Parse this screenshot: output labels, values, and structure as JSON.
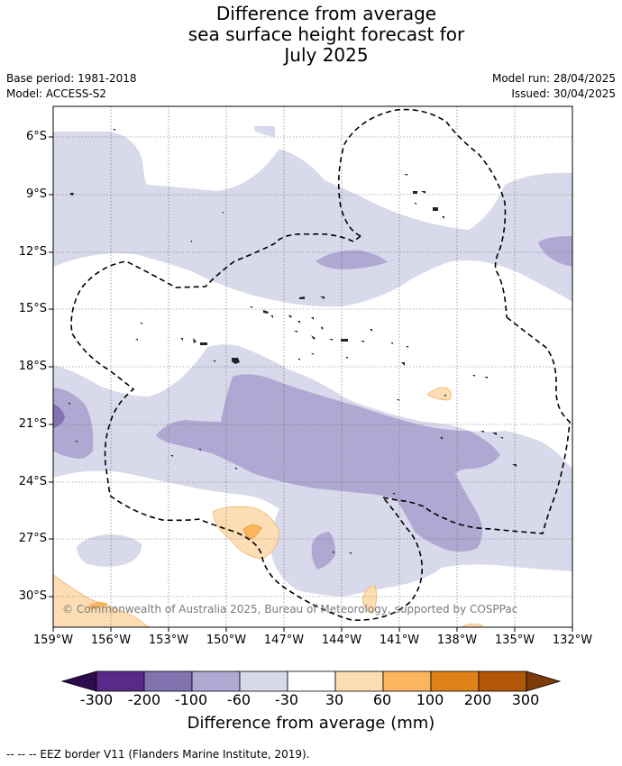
{
  "title_lines": [
    "Difference from average",
    "sea surface height forecast for",
    "July 2025"
  ],
  "meta_left": [
    "Base period: 1981-2018",
    "Model: ACCESS-S2"
  ],
  "meta_right": [
    "Model run: 28/04/2025",
    "Issued: 30/04/2025"
  ],
  "lat_ticks": [
    "6°S",
    "9°S",
    "12°S",
    "15°S",
    "18°S",
    "21°S",
    "24°S",
    "27°S",
    "30°S"
  ],
  "lon_ticks": [
    "159°W",
    "156°W",
    "153°W",
    "150°W",
    "147°W",
    "144°W",
    "141°W",
    "138°W",
    "135°W",
    "132°W"
  ],
  "copyright": "© Commonwealth of Australia 2025, Bureau of Meteorology, supported by COSPPac",
  "colorbar": {
    "title": "Difference from average (mm)",
    "labels": [
      "-300",
      "-200",
      "-100",
      "-60",
      "-30",
      "30",
      "60",
      "100",
      "200",
      "300"
    ],
    "colors": [
      "#2e0b4d",
      "#5a2a8a",
      "#8272b0",
      "#b0a8d2",
      "#d8d9ea",
      "#ffffff",
      "#fddeb4",
      "#fbb55f",
      "#e08218",
      "#b25707",
      "#7f3a0a"
    ]
  },
  "footnote": "--  --  -- EEZ border V11 (Flanders Marine Institute, 2019)."
}
